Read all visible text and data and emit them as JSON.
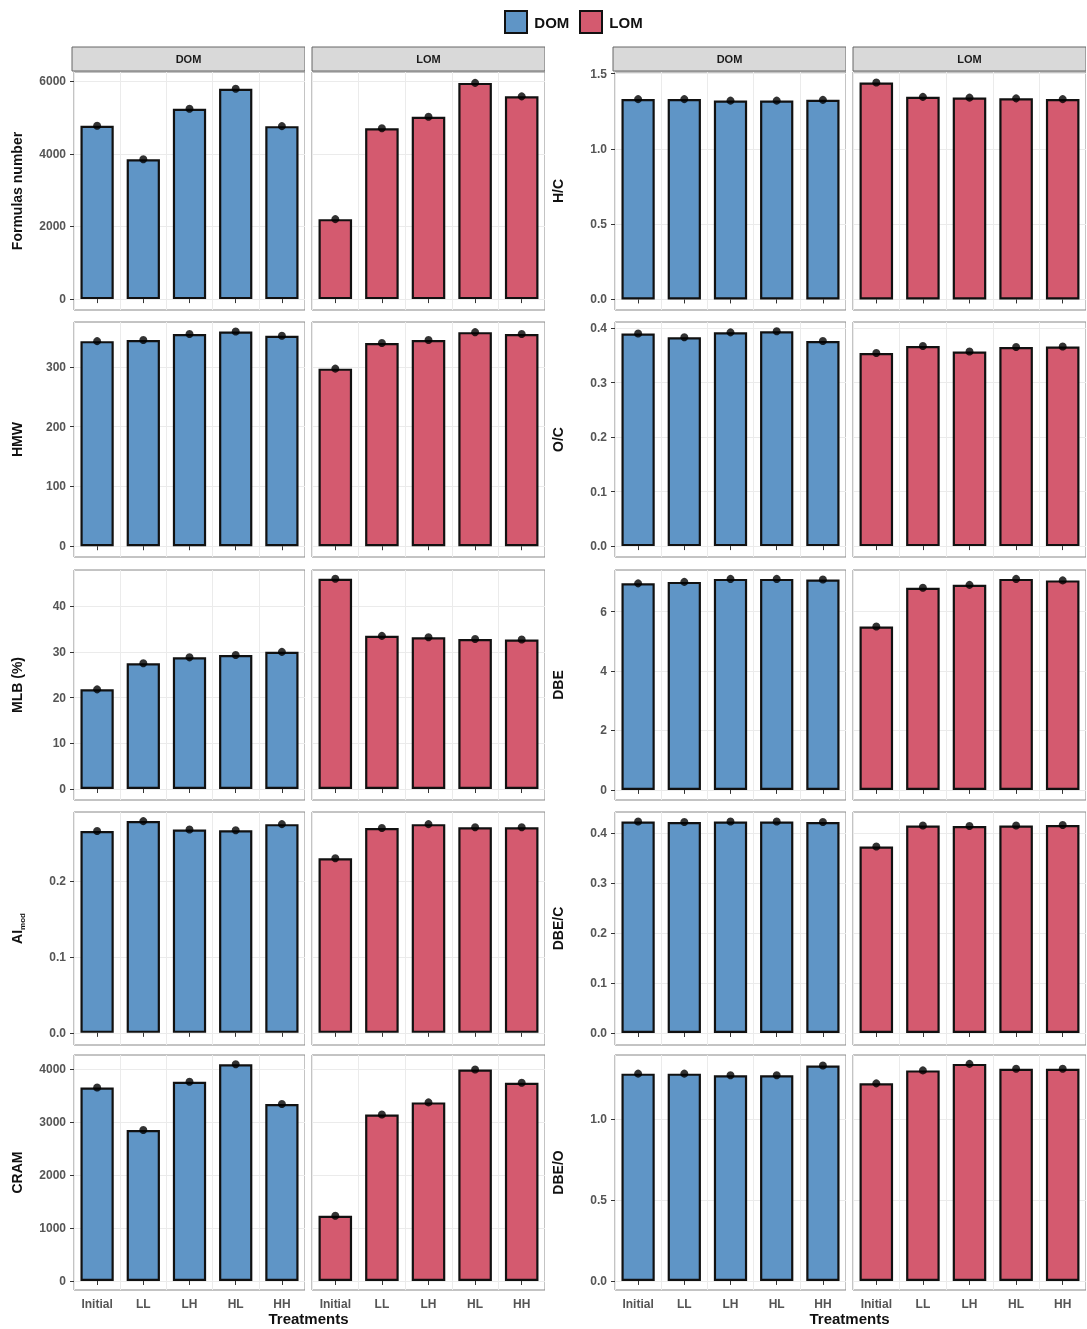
{
  "chart_data": [
    {
      "type": "bar",
      "title": "DOM",
      "ylabel": "Formulas number",
      "legend": "top",
      "categories": [
        "Initial",
        "LL",
        "LH",
        "HL",
        "HH"
      ],
      "series": [
        {
          "name": "DOM",
          "color": "#5f95c6",
          "values": [
            4770,
            3850,
            5240,
            5790,
            4760
          ]
        },
        {
          "type": "scatter",
          "color": "#000000",
          "x": [
            "Initial",
            "LL",
            "LH",
            "HL",
            "HH"
          ],
          "values": [
            4770,
            3850,
            5240,
            5790,
            4760
          ]
        }
      ],
      "ylim": [
        -300,
        6250
      ],
      "yticks": [
        0,
        2000,
        4000,
        6000
      ],
      "grid": true,
      "tick_labels": "y"
    },
    {
      "type": "bar",
      "title": "LOM",
      "legend": "top",
      "categories": [
        "Initial",
        "LL",
        "LH",
        "HL",
        "HH"
      ],
      "series": [
        {
          "name": "LOM",
          "color": "#d45a6f",
          "values": [
            2200,
            4700,
            5020,
            5950,
            5580
          ]
        },
        {
          "type": "scatter",
          "color": "#000000",
          "x": [
            "Initial",
            "LL",
            "LH",
            "HL",
            "HH"
          ],
          "values": [
            2200,
            4700,
            5020,
            5950,
            5580
          ]
        }
      ],
      "ylim": [
        -300,
        6250
      ],
      "yticks": [
        0,
        2000,
        4000,
        6000
      ],
      "grid": true,
      "tick_labels": false
    },
    {
      "type": "bar",
      "title": "DOM",
      "ylabel": "H/C",
      "categories": [
        "Initial",
        "LL",
        "LH",
        "HL",
        "HH"
      ],
      "series": [
        {
          "color": "#5f95c6",
          "values": [
            1.33,
            1.33,
            1.32,
            1.32,
            1.325
          ]
        },
        {
          "type": "scatter",
          "color": "#000000",
          "x": [
            "Initial",
            "LL",
            "LH",
            "HL",
            "HH"
          ],
          "values": [
            1.33,
            1.33,
            1.32,
            1.32,
            1.325
          ]
        }
      ],
      "ylim": [
        -0.07,
        1.51
      ],
      "yticks": [
        {
          "value": 0,
          "label": "0.0"
        },
        {
          "value": 0.5,
          "label": "0.5"
        },
        {
          "value": 1,
          "label": "1.0"
        },
        {
          "value": 1.5,
          "label": "1.5"
        }
      ],
      "grid": true,
      "tick_labels": "y"
    },
    {
      "type": "bar",
      "title": "LOM",
      "categories": [
        "Initial",
        "LL",
        "LH",
        "HL",
        "HH"
      ],
      "series": [
        {
          "color": "#d45a6f",
          "values": [
            1.44,
            1.345,
            1.34,
            1.335,
            1.33
          ]
        },
        {
          "type": "scatter",
          "color": "#000000",
          "x": [
            "Initial",
            "LL",
            "LH",
            "HL",
            "HH"
          ],
          "values": [
            1.44,
            1.345,
            1.34,
            1.335,
            1.33
          ]
        }
      ],
      "ylim": [
        -0.07,
        1.51
      ],
      "yticks": [
        0,
        0.5,
        1,
        1.5
      ],
      "grid": true,
      "tick_labels": false
    },
    {
      "type": "bar",
      "ylabel": "HMW",
      "categories": [
        "Initial",
        "LL",
        "LH",
        "HL",
        "HH"
      ],
      "series": [
        {
          "color": "#5f95c6",
          "values": [
            343,
            345,
            355,
            359,
            352
          ]
        },
        {
          "type": "scatter",
          "color": "#000000",
          "x": [
            "Initial",
            "LL",
            "LH",
            "HL",
            "HH"
          ],
          "values": [
            343,
            345,
            355,
            359,
            352
          ]
        }
      ],
      "ylim": [
        -18,
        375
      ],
      "yticks": [
        0,
        100,
        200,
        300
      ],
      "grid": true,
      "tick_labels": "y"
    },
    {
      "type": "bar",
      "categories": [
        "Initial",
        "LL",
        "LH",
        "HL",
        "HH"
      ],
      "series": [
        {
          "color": "#d45a6f",
          "values": [
            297,
            340,
            345,
            358,
            355
          ]
        },
        {
          "type": "scatter",
          "color": "#000000",
          "x": [
            "Initial",
            "LL",
            "LH",
            "HL",
            "HH"
          ],
          "values": [
            297,
            340,
            345,
            358,
            355
          ]
        }
      ],
      "ylim": [
        -18,
        375
      ],
      "yticks": [
        0,
        100,
        200,
        300
      ],
      "grid": true,
      "tick_labels": false
    },
    {
      "type": "bar",
      "ylabel": "O/C",
      "categories": [
        "Initial",
        "LL",
        "LH",
        "HL",
        "HH"
      ],
      "series": [
        {
          "color": "#5f95c6",
          "values": [
            0.39,
            0.383,
            0.392,
            0.394,
            0.376
          ]
        },
        {
          "type": "scatter",
          "color": "#000000",
          "x": [
            "Initial",
            "LL",
            "LH",
            "HL",
            "HH"
          ],
          "values": [
            0.39,
            0.383,
            0.392,
            0.394,
            0.376
          ]
        }
      ],
      "ylim": [
        -0.02,
        0.411
      ],
      "yticks": [
        {
          "value": 0,
          "label": "0.0"
        },
        0.1,
        0.2,
        0.3,
        0.4
      ],
      "grid": true,
      "tick_labels": "y"
    },
    {
      "type": "bar",
      "categories": [
        "Initial",
        "LL",
        "LH",
        "HL",
        "HH"
      ],
      "series": [
        {
          "color": "#d45a6f",
          "values": [
            0.354,
            0.367,
            0.357,
            0.365,
            0.366
          ]
        },
        {
          "type": "scatter",
          "color": "#000000",
          "x": [
            "Initial",
            "LL",
            "LH",
            "HL",
            "HH"
          ],
          "values": [
            0.354,
            0.367,
            0.357,
            0.365,
            0.366
          ]
        }
      ],
      "ylim": [
        -0.02,
        0.411
      ],
      "yticks": [
        0,
        0.1,
        0.2,
        0.3,
        0.4
      ],
      "grid": true,
      "tick_labels": false
    },
    {
      "type": "bar",
      "ylabel": "MLB (%)",
      "categories": [
        "Initial",
        "LL",
        "LH",
        "HL",
        "HH"
      ],
      "series": [
        {
          "color": "#5f95c6",
          "values": [
            21.8,
            27.5,
            28.8,
            29.3,
            30
          ]
        },
        {
          "type": "scatter",
          "color": "#000000",
          "x": [
            "Initial",
            "LL",
            "LH",
            "HL",
            "HH"
          ],
          "values": [
            21.8,
            27.5,
            28.8,
            29.3,
            30
          ]
        }
      ],
      "ylim": [
        -2.4,
        47.9
      ],
      "yticks": [
        0,
        10,
        20,
        30,
        40
      ],
      "grid": true,
      "tick_labels": "y"
    },
    {
      "type": "bar",
      "categories": [
        "Initial",
        "LL",
        "LH",
        "HL",
        "HH"
      ],
      "series": [
        {
          "color": "#d45a6f",
          "values": [
            46,
            33.5,
            33.2,
            32.8,
            32.7
          ]
        },
        {
          "type": "scatter",
          "color": "#000000",
          "x": [
            "Initial",
            "LL",
            "LH",
            "HL",
            "HH"
          ],
          "values": [
            46,
            33.5,
            33.2,
            32.8,
            32.7
          ]
        }
      ],
      "ylim": [
        -2.4,
        47.9
      ],
      "yticks": [
        0,
        10,
        20,
        30,
        40
      ],
      "grid": true,
      "tick_labels": false
    },
    {
      "type": "bar",
      "ylabel": "DBE",
      "categories": [
        "Initial",
        "LL",
        "LH",
        "HL",
        "HH"
      ],
      "series": [
        {
          "color": "#5f95c6",
          "values": [
            6.95,
            7.0,
            7.1,
            7.1,
            7.08
          ]
        },
        {
          "type": "scatter",
          "color": "#000000",
          "x": [
            "Initial",
            "LL",
            "LH",
            "HL",
            "HH"
          ],
          "values": [
            6.95,
            7.0,
            7.1,
            7.1,
            7.08
          ]
        }
      ],
      "ylim": [
        -0.34,
        7.4
      ],
      "yticks": [
        0,
        2,
        4,
        6
      ],
      "grid": true,
      "tick_labels": "y"
    },
    {
      "type": "bar",
      "categories": [
        "Initial",
        "LL",
        "LH",
        "HL",
        "HH"
      ],
      "series": [
        {
          "color": "#d45a6f",
          "values": [
            5.5,
            6.8,
            6.9,
            7.1,
            7.05
          ]
        },
        {
          "type": "scatter",
          "color": "#000000",
          "x": [
            "Initial",
            "LL",
            "LH",
            "HL",
            "HH"
          ],
          "values": [
            5.5,
            6.8,
            6.9,
            7.1,
            7.05
          ]
        }
      ],
      "ylim": [
        -0.34,
        7.4
      ],
      "yticks": [
        0,
        2,
        4,
        6
      ],
      "grid": true,
      "tick_labels": false
    },
    {
      "type": "bar",
      "ylabel": "AI$_{mod}$",
      "categories": [
        "Initial",
        "LL",
        "LH",
        "HL",
        "HH"
      ],
      "series": [
        {
          "color": "#5f95c6",
          "values": [
            0.266,
            0.279,
            0.268,
            0.267,
            0.275
          ]
        },
        {
          "type": "scatter",
          "color": "#000000",
          "x": [
            "Initial",
            "LL",
            "LH",
            "HL",
            "HH"
          ],
          "values": [
            0.266,
            0.279,
            0.268,
            0.267,
            0.275
          ]
        }
      ],
      "ylim": [
        -0.016,
        0.291
      ],
      "yticks": [
        {
          "value": 0,
          "label": "0.0"
        },
        0.1,
        0.2
      ],
      "grid": true,
      "tick_labels": "y"
    },
    {
      "type": "bar",
      "categories": [
        "Initial",
        "LL",
        "LH",
        "HL",
        "HH"
      ],
      "series": [
        {
          "color": "#d45a6f",
          "values": [
            0.23,
            0.27,
            0.275,
            0.271,
            0.271
          ]
        },
        {
          "type": "scatter",
          "color": "#000000",
          "x": [
            "Initial",
            "LL",
            "LH",
            "HL",
            "HH"
          ],
          "values": [
            0.23,
            0.27,
            0.275,
            0.271,
            0.271
          ]
        }
      ],
      "ylim": [
        -0.016,
        0.291
      ],
      "yticks": [
        0,
        0.1,
        0.2
      ],
      "grid": true,
      "tick_labels": false
    },
    {
      "type": "bar",
      "ylabel": "DBE/C",
      "categories": [
        "Initial",
        "LL",
        "LH",
        "HL",
        "HH"
      ],
      "series": [
        {
          "color": "#5f95c6",
          "values": [
            0.423,
            0.422,
            0.423,
            0.423,
            0.422
          ]
        },
        {
          "type": "scatter",
          "color": "#000000",
          "x": [
            "Initial",
            "LL",
            "LH",
            "HL",
            "HH"
          ],
          "values": [
            0.423,
            0.422,
            0.423,
            0.423,
            0.422
          ]
        }
      ],
      "ylim": [
        -0.024,
        0.442
      ],
      "yticks": [
        {
          "value": 0,
          "label": "0.0"
        },
        0.1,
        0.2,
        0.3,
        0.4
      ],
      "grid": true,
      "tick_labels": "y"
    },
    {
      "type": "bar",
      "categories": [
        "Initial",
        "LL",
        "LH",
        "HL",
        "HH"
      ],
      "series": [
        {
          "color": "#d45a6f",
          "values": [
            0.373,
            0.415,
            0.414,
            0.415,
            0.416
          ]
        },
        {
          "type": "scatter",
          "color": "#000000",
          "x": [
            "Initial",
            "LL",
            "LH",
            "HL",
            "HH"
          ],
          "values": [
            0.373,
            0.415,
            0.414,
            0.415,
            0.416
          ]
        }
      ],
      "ylim": [
        -0.024,
        0.442
      ],
      "yticks": [
        0,
        0.1,
        0.2,
        0.3,
        0.4
      ],
      "grid": true,
      "tick_labels": false
    },
    {
      "type": "bar",
      "ylabel": "CRAM",
      "xlabel": "Treatments",
      "categories": [
        "Initial",
        "LL",
        "LH",
        "HL",
        "HH"
      ],
      "series": [
        {
          "color": "#5f95c6",
          "values": [
            3650,
            2850,
            3760,
            4090,
            3340
          ]
        },
        {
          "type": "scatter",
          "color": "#000000",
          "x": [
            "Initial",
            "LL",
            "LH",
            "HL",
            "HH"
          ],
          "values": [
            3650,
            2850,
            3760,
            4090,
            3340
          ]
        }
      ],
      "ylim": [
        -170,
        4264
      ],
      "yticks": [
        0,
        1000,
        2000,
        3000,
        4000
      ],
      "grid": true
    },
    {
      "type": "bar",
      "categories": [
        "Initial",
        "LL",
        "LH",
        "HL",
        "HH"
      ],
      "series": [
        {
          "color": "#d45a6f",
          "values": [
            1230,
            3140,
            3370,
            3990,
            3740
          ]
        },
        {
          "type": "scatter",
          "color": "#000000",
          "x": [
            "Initial",
            "LL",
            "LH",
            "HL",
            "HH"
          ],
          "values": [
            1230,
            3140,
            3370,
            3990,
            3740
          ]
        }
      ],
      "ylim": [
        -170,
        4264
      ],
      "yticks": [
        0,
        1000,
        2000,
        3000,
        4000
      ],
      "grid": true,
      "tick_labels": "x"
    },
    {
      "type": "bar",
      "ylabel": "DBE/O",
      "xlabel": "Treatments",
      "categories": [
        "Initial",
        "LL",
        "LH",
        "HL",
        "HH"
      ],
      "series": [
        {
          "color": "#5f95c6",
          "values": [
            1.28,
            1.28,
            1.27,
            1.27,
            1.33
          ]
        },
        {
          "type": "scatter",
          "color": "#000000",
          "x": [
            "Initial",
            "LL",
            "LH",
            "HL",
            "HH"
          ],
          "values": [
            1.28,
            1.28,
            1.27,
            1.27,
            1.33
          ]
        }
      ],
      "ylim": [
        -0.056,
        1.395
      ],
      "yticks": [
        {
          "value": 0,
          "label": "0.0"
        },
        {
          "value": 0.5,
          "label": "0.5"
        },
        {
          "value": 1,
          "label": "1.0"
        }
      ],
      "grid": true
    },
    {
      "type": "bar",
      "categories": [
        "Initial",
        "LL",
        "LH",
        "HL",
        "HH"
      ],
      "series": [
        {
          "color": "#d45a6f",
          "values": [
            1.22,
            1.3,
            1.34,
            1.31,
            1.31
          ]
        },
        {
          "type": "scatter",
          "color": "#000000",
          "x": [
            "Initial",
            "LL",
            "LH",
            "HL",
            "HH"
          ],
          "values": [
            1.22,
            1.3,
            1.34,
            1.31,
            1.31
          ]
        }
      ],
      "ylim": [
        -0.056,
        1.395
      ],
      "yticks": [
        0,
        0.5,
        1
      ],
      "grid": true,
      "tick_labels": "x"
    }
  ]
}
